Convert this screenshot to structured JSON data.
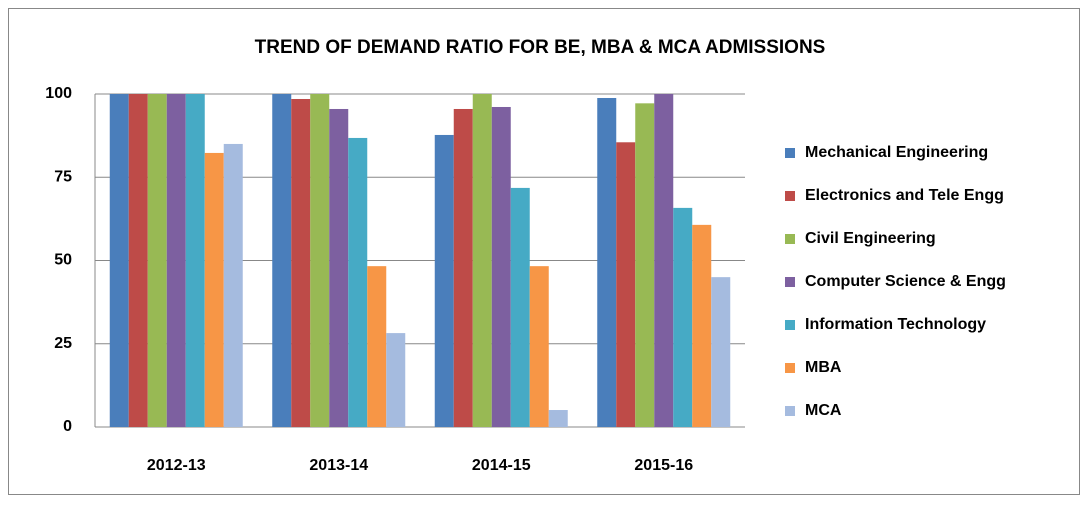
{
  "chart_data": {
    "type": "bar",
    "title": "TREND OF DEMAND RATIO FOR BE, MBA & MCA ADMISSIONS",
    "categories": [
      "2012-13",
      "2013-14",
      "2014-15",
      "2015-16"
    ],
    "series": [
      {
        "name": "Mechanical Engineering",
        "color": "#4a7ebb",
        "values": [
          100,
          100,
          87.7,
          98.8
        ]
      },
      {
        "name": "Electronics and Tele Engg",
        "color": "#be4b48",
        "values": [
          100,
          98.5,
          95.5,
          85.5
        ]
      },
      {
        "name": "Civil Engineering",
        "color": "#98b954",
        "values": [
          100,
          100,
          100,
          97.2
        ]
      },
      {
        "name": "Computer Science & Engg",
        "color": "#7d60a0",
        "values": [
          100,
          95.5,
          96.1,
          100
        ]
      },
      {
        "name": "Information Technology",
        "color": "#46aac5",
        "values": [
          100,
          86.8,
          71.8,
          65.8
        ]
      },
      {
        "name": "MBA",
        "color": "#f79646",
        "values": [
          82.3,
          48.3,
          48.3,
          60.7
        ]
      },
      {
        "name": "MCA",
        "color": "#a5bbdf",
        "values": [
          85,
          28.2,
          5.1,
          45
        ]
      }
    ],
    "ylim": [
      0,
      100
    ],
    "yticks": [
      0,
      25,
      50,
      75,
      100
    ],
    "grid": true,
    "legend": "right"
  }
}
